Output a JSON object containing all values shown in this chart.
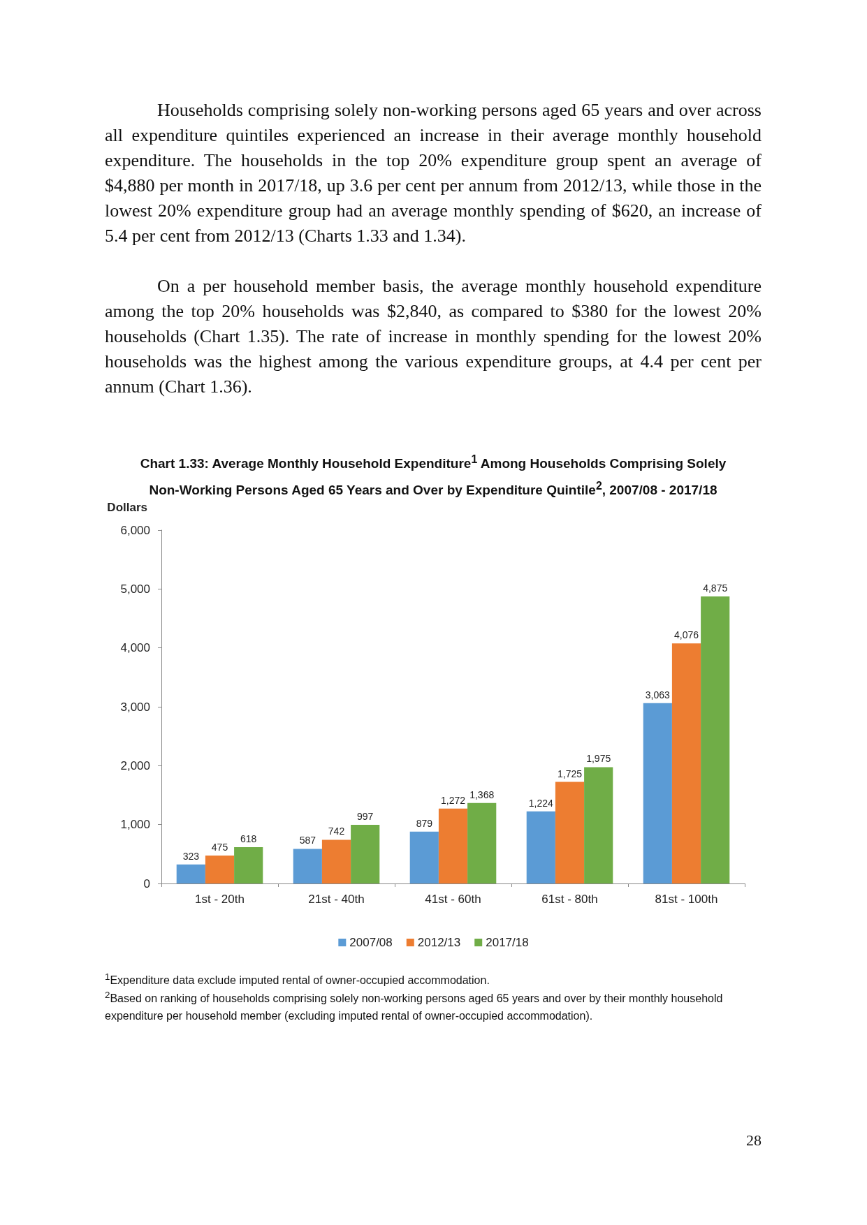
{
  "chart_data": {
    "type": "bar",
    "title": "Chart 1.33: Average Monthly Household Expenditure$^{1}$ Among Households Comprising Solely Non-Working Persons Aged 65 Years and Over by Expenditure Quintile$^{2}$, 2007/08 - 2017/18",
    "ylabel": "Dollars",
    "categories": [
      "1st - 20th",
      "21st - 40th",
      "41st - 60th",
      "61st - 80th",
      "81st - 100th"
    ],
    "series": [
      {
        "name": "2007/08",
        "color": "#5b9bd5",
        "values": [
          323,
          587,
          879,
          1224,
          3063
        ],
        "value_labels": [
          "323",
          "587",
          "879",
          "1,224",
          "3,063"
        ]
      },
      {
        "name": "2012/13",
        "color": "#ed7d31",
        "values": [
          475,
          742,
          1272,
          1725,
          4076
        ],
        "value_labels": [
          "475",
          "742",
          "1,272",
          "1,725",
          "4,076"
        ]
      },
      {
        "name": "2017/18",
        "color": "#70ad47",
        "values": [
          618,
          997,
          1368,
          1975,
          4875
        ],
        "value_labels": [
          "618",
          "997",
          "1,368",
          "1,975",
          "4,875"
        ]
      }
    ],
    "ylim": [
      0,
      6000
    ],
    "yticks": [
      {
        "value": 0,
        "label": "0"
      },
      {
        "value": 1000,
        "label": "1,000"
      },
      {
        "value": 2000,
        "label": "2,000"
      },
      {
        "value": 3000,
        "label": "3,000"
      },
      {
        "value": 4000,
        "label": "4,000"
      },
      {
        "value": 5000,
        "label": "5,000"
      },
      {
        "value": 6000,
        "label": "6,000"
      }
    ],
    "legend": "bottom",
    "grid": false,
    "annotations": [
      "Households comprising solely non-working persons aged 65 years and over across all expenditure quintiles experienced an increase in their average monthly household expenditure. The households in the top 20% expenditure group spent an average of $4,880 per month in 2017/18, up 3.6 per cent per annum from 2012/13, while those in the lowest 20% expenditure group had an average monthly spending of $620, an increase of 5.4 per cent from 2012/13 (Charts 1.33 and 1.34).",
      "On a per household member basis, the average monthly household expenditure among the top 20% households was $2,840, as compared to $380 for the lowest 20% households (Chart 1.35). The rate of increase in monthly spending for the lowest 20% households was the highest among the various expenditure groups, at 4.4 per cent per annum (Chart 1.36).",
      "$^{1}$Expenditure data exclude imputed rental of owner-occupied accommodation.",
      "$^{2}$Based on ranking of households comprising solely non-working persons aged 65 years and over by their monthly household expenditure per household member (excluding imputed rental of owner-occupied accommodation).",
      "28"
    ]
  }
}
